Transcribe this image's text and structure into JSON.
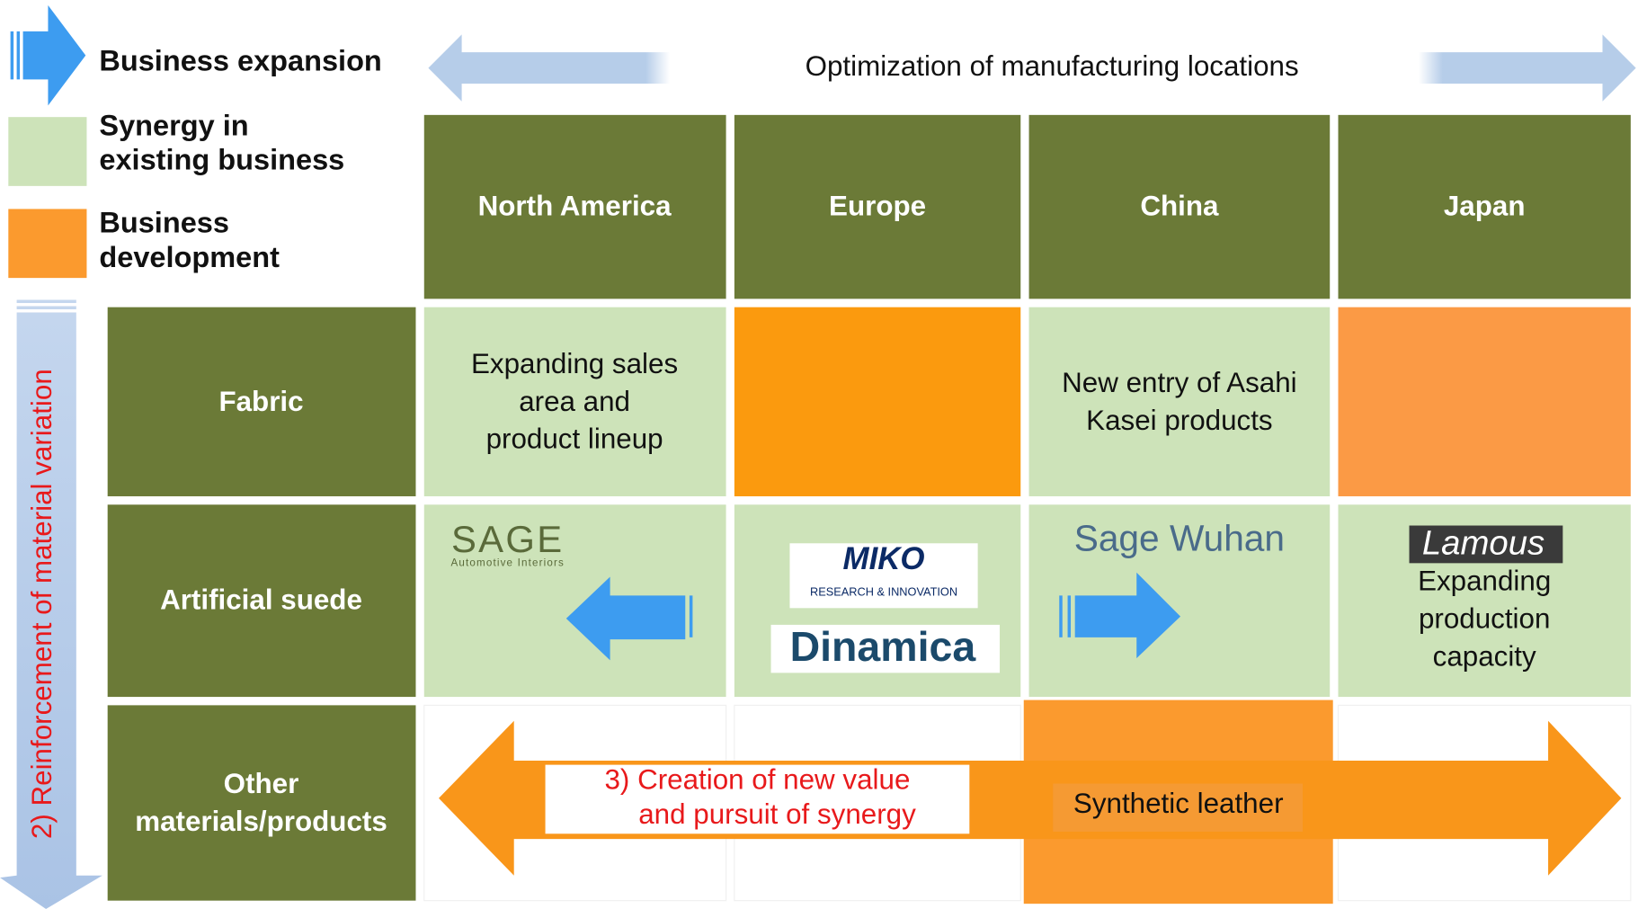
{
  "legend": {
    "items": [
      {
        "label_lines": [
          "Business expansion"
        ]
      },
      {
        "label_lines": [
          "Synergy in",
          "existing business"
        ]
      },
      {
        "label_lines": [
          "Business",
          "development"
        ]
      }
    ]
  },
  "top_arrow": {
    "label": "Optimization of manufacturing locations"
  },
  "side_arrow": {
    "label": "2) Reinforcement of material variation"
  },
  "columns": [
    "North America",
    "Europe",
    "China",
    "Japan"
  ],
  "rows": [
    {
      "label_lines": [
        "Fabric"
      ]
    },
    {
      "label_lines": [
        "Artificial suede"
      ]
    },
    {
      "label_lines": [
        "Other",
        "materials/products"
      ]
    }
  ],
  "cells": {
    "fabric_north_america": [
      "Expanding sales",
      "area and",
      "product lineup"
    ],
    "fabric_china": [
      "New entry of Asahi",
      "Kasei products"
    ],
    "suede_north_america": {
      "logo": "SAGE",
      "tagline": "Automotive Interiors"
    },
    "suede_europe": {
      "logo1": "MIKO",
      "logo1_tagline": "RESEARCH & INNOVATION",
      "logo2": "Dinamica"
    },
    "suede_china": "Sage Wuhan",
    "suede_japan": {
      "logo": "Lamous",
      "text_lines": [
        "Expanding",
        "production",
        "capacity"
      ]
    }
  },
  "bottom_arrow": {
    "label_lines": [
      "3) Creation of new value",
      "and pursuit of synergy"
    ]
  },
  "synthetic_leather": "Synthetic leather"
}
